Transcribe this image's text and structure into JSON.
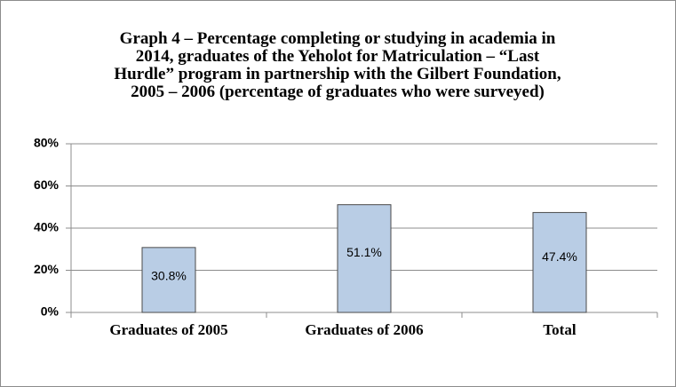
{
  "chart_data": {
    "type": "bar",
    "title": "Graph 4 – Percentage completing or studying in academia in 2014, graduates of the Yeholot for Matriculation – “Last Hurdle” program in partnership with the Gilbert Foundation, 2005 – 2006 (percentage of graduates who were surveyed)",
    "categories": [
      "Graduates of 2005",
      "Graduates of 2006",
      "Total"
    ],
    "values": [
      30.8,
      51.1,
      47.4
    ],
    "value_labels": [
      "30.8%",
      "51.1%",
      "47.4%"
    ],
    "color": "#b9cde5",
    "ylim": [
      0,
      80
    ],
    "yticks": [
      {
        "value": 0,
        "label": "0%"
      },
      {
        "value": 20,
        "label": "20%"
      },
      {
        "value": 40,
        "label": "40%"
      },
      {
        "value": 60,
        "label": "60%"
      },
      {
        "value": 80,
        "label": "80%"
      }
    ],
    "grid": true
  }
}
